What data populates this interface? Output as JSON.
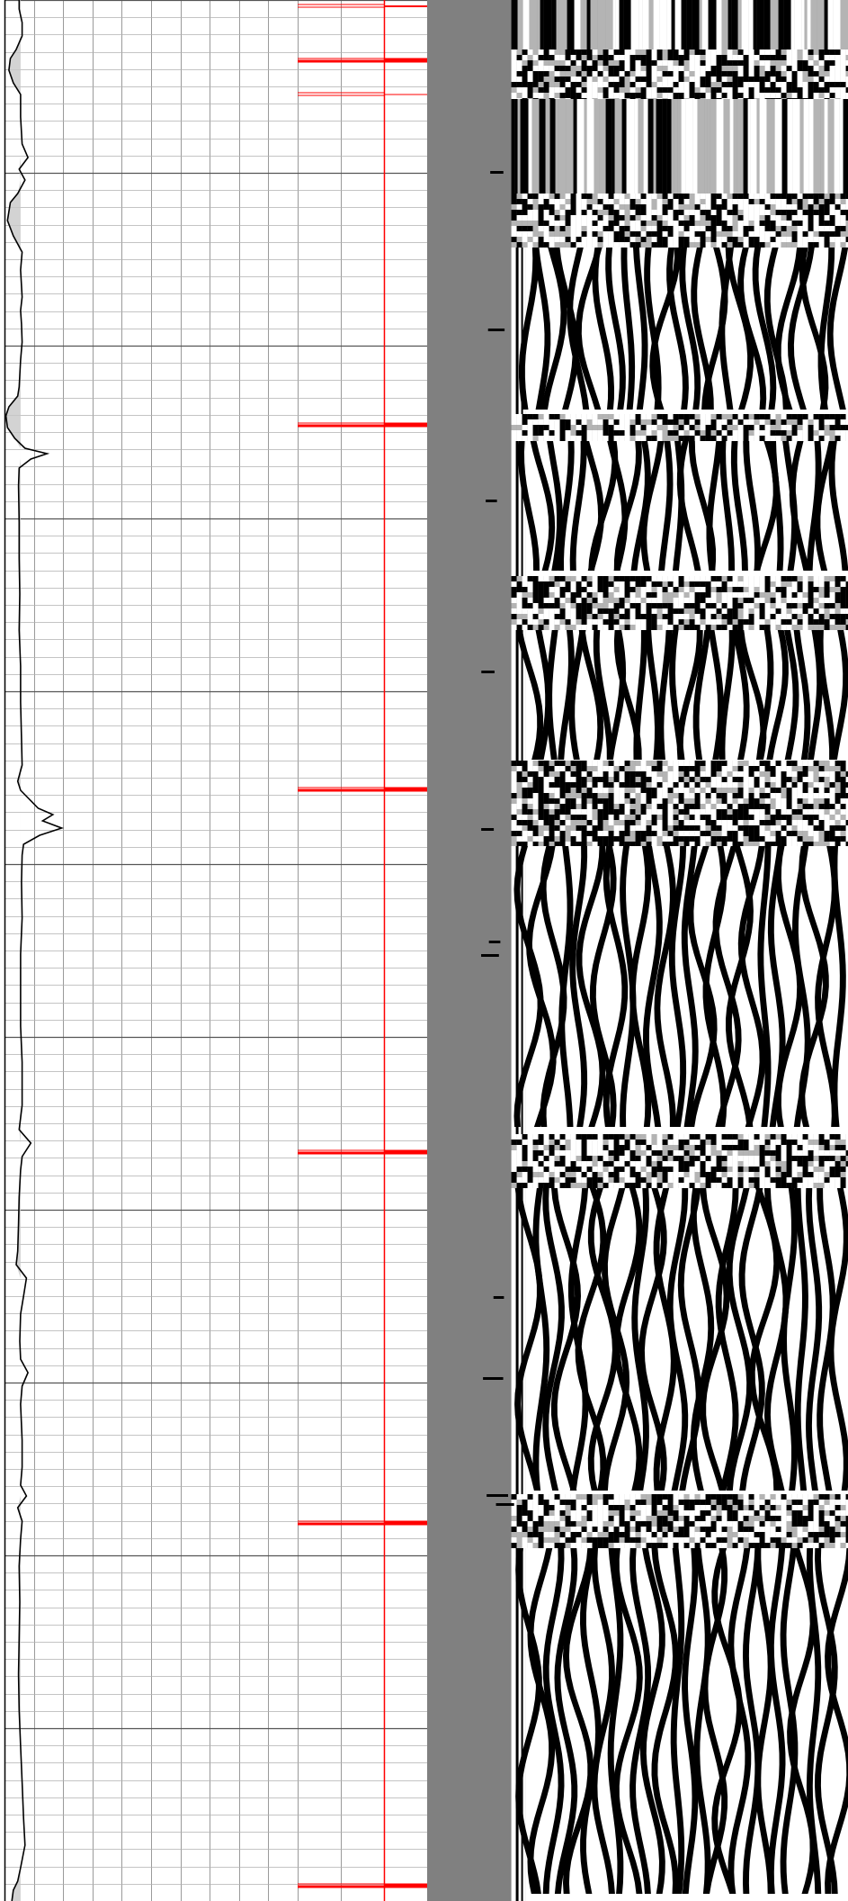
{
  "chart_data": {
    "type": "well-log",
    "tracks": [
      {
        "name": "",
        "kind": "curve",
        "grid": true,
        "curve_color": "#000000",
        "fill_color": "#c8c8c8",
        "x_range": [
          0,
          1
        ],
        "depth_range": [
          0,
          2112
        ],
        "curve": [
          [
            0,
            0.05
          ],
          [
            10,
            0.05
          ],
          [
            25,
            0.06
          ],
          [
            40,
            0.06
          ],
          [
            55,
            0.04
          ],
          [
            65,
            0.02
          ],
          [
            78,
            0.015
          ],
          [
            92,
            0.03
          ],
          [
            105,
            0.055
          ],
          [
            130,
            0.055
          ],
          [
            160,
            0.06
          ],
          [
            175,
            0.08
          ],
          [
            188,
            0.05
          ],
          [
            200,
            0.07
          ],
          [
            215,
            0.045
          ],
          [
            225,
            0.02
          ],
          [
            245,
            0.01
          ],
          [
            262,
            0.03
          ],
          [
            280,
            0.06
          ],
          [
            300,
            0.055
          ],
          [
            330,
            0.06
          ],
          [
            345,
            0.055
          ],
          [
            360,
            0.058
          ],
          [
            380,
            0.06
          ],
          [
            400,
            0.055
          ],
          [
            430,
            0.05
          ],
          [
            440,
            0.045
          ],
          [
            452,
            0.015
          ],
          [
            462,
            0.005
          ],
          [
            475,
            0.01
          ],
          [
            487,
            0.035
          ],
          [
            498,
            0.07
          ],
          [
            504,
            0.145
          ],
          [
            510,
            0.09
          ],
          [
            520,
            0.05
          ],
          [
            540,
            0.048
          ],
          [
            580,
            0.05
          ],
          [
            620,
            0.05
          ],
          [
            660,
            0.052
          ],
          [
            700,
            0.05
          ],
          [
            740,
            0.055
          ],
          [
            780,
            0.055
          ],
          [
            820,
            0.058
          ],
          [
            850,
            0.06
          ],
          [
            868,
            0.045
          ],
          [
            878,
            0.055
          ],
          [
            888,
            0.085
          ],
          [
            898,
            0.115
          ],
          [
            905,
            0.165
          ],
          [
            912,
            0.13
          ],
          [
            920,
            0.195
          ],
          [
            928,
            0.12
          ],
          [
            938,
            0.065
          ],
          [
            950,
            0.06
          ],
          [
            980,
            0.058
          ],
          [
            1020,
            0.06
          ],
          [
            1060,
            0.055
          ],
          [
            1100,
            0.055
          ],
          [
            1140,
            0.055
          ],
          [
            1180,
            0.06
          ],
          [
            1228,
            0.06
          ],
          [
            1255,
            0.05
          ],
          [
            1270,
            0.09
          ],
          [
            1285,
            0.06
          ],
          [
            1300,
            0.055
          ],
          [
            1330,
            0.05
          ],
          [
            1360,
            0.048
          ],
          [
            1390,
            0.045
          ],
          [
            1405,
            0.04
          ],
          [
            1420,
            0.075
          ],
          [
            1440,
            0.065
          ],
          [
            1460,
            0.055
          ],
          [
            1490,
            0.052
          ],
          [
            1510,
            0.055
          ],
          [
            1525,
            0.08
          ],
          [
            1540,
            0.06
          ],
          [
            1560,
            0.055
          ],
          [
            1600,
            0.06
          ],
          [
            1630,
            0.06
          ],
          [
            1650,
            0.055
          ],
          [
            1662,
            0.075
          ],
          [
            1675,
            0.045
          ],
          [
            1690,
            0.06
          ],
          [
            1710,
            0.055
          ],
          [
            1740,
            0.05
          ],
          [
            1780,
            0.052
          ],
          [
            1820,
            0.05
          ],
          [
            1860,
            0.048
          ],
          [
            1900,
            0.05
          ],
          [
            1940,
            0.055
          ],
          [
            1980,
            0.06
          ],
          [
            2020,
            0.065
          ],
          [
            2050,
            0.07
          ],
          [
            2075,
            0.055
          ],
          [
            2090,
            0.045
          ],
          [
            2100,
            0.03
          ],
          [
            2112,
            0.025
          ]
        ]
      },
      {
        "name": "",
        "kind": "markers",
        "grid": true,
        "marker_color": "#ff0000",
        "reference_line": 0.67,
        "markers": [
          {
            "depth": 7,
            "weight": 2
          },
          {
            "depth": 67,
            "weight": 5
          },
          {
            "depth": 105,
            "weight": 1
          },
          {
            "depth": 472,
            "weight": 5
          },
          {
            "depth": 877,
            "weight": 5
          },
          {
            "depth": 1280,
            "weight": 5
          },
          {
            "depth": 1692,
            "weight": 5
          },
          {
            "depth": 2095,
            "weight": 5
          }
        ]
      },
      {
        "name": "",
        "kind": "image",
        "background_color": "#808080",
        "palette": [
          "#000000",
          "#ffffff",
          "#b4b4b4"
        ],
        "image_start_fraction": 0.2,
        "bands": [
          {
            "from": 0,
            "to": 55,
            "mode": "vertical"
          },
          {
            "from": 55,
            "to": 110,
            "mode": "noisy"
          },
          {
            "from": 110,
            "to": 215,
            "mode": "vertical"
          },
          {
            "from": 215,
            "to": 275,
            "mode": "noisy"
          },
          {
            "from": 275,
            "to": 460,
            "mode": "wavy"
          },
          {
            "from": 460,
            "to": 490,
            "mode": "noisy"
          },
          {
            "from": 490,
            "to": 640,
            "mode": "wavy"
          },
          {
            "from": 640,
            "to": 700,
            "mode": "noisy"
          },
          {
            "from": 700,
            "to": 845,
            "mode": "wavy"
          },
          {
            "from": 845,
            "to": 940,
            "mode": "noisy"
          },
          {
            "from": 940,
            "to": 1260,
            "mode": "wavy"
          },
          {
            "from": 1260,
            "to": 1320,
            "mode": "noisy"
          },
          {
            "from": 1320,
            "to": 1660,
            "mode": "wavy"
          },
          {
            "from": 1660,
            "to": 1720,
            "mode": "noisy"
          },
          {
            "from": 1720,
            "to": 2112,
            "mode": "wavy"
          }
        ]
      }
    ]
  }
}
